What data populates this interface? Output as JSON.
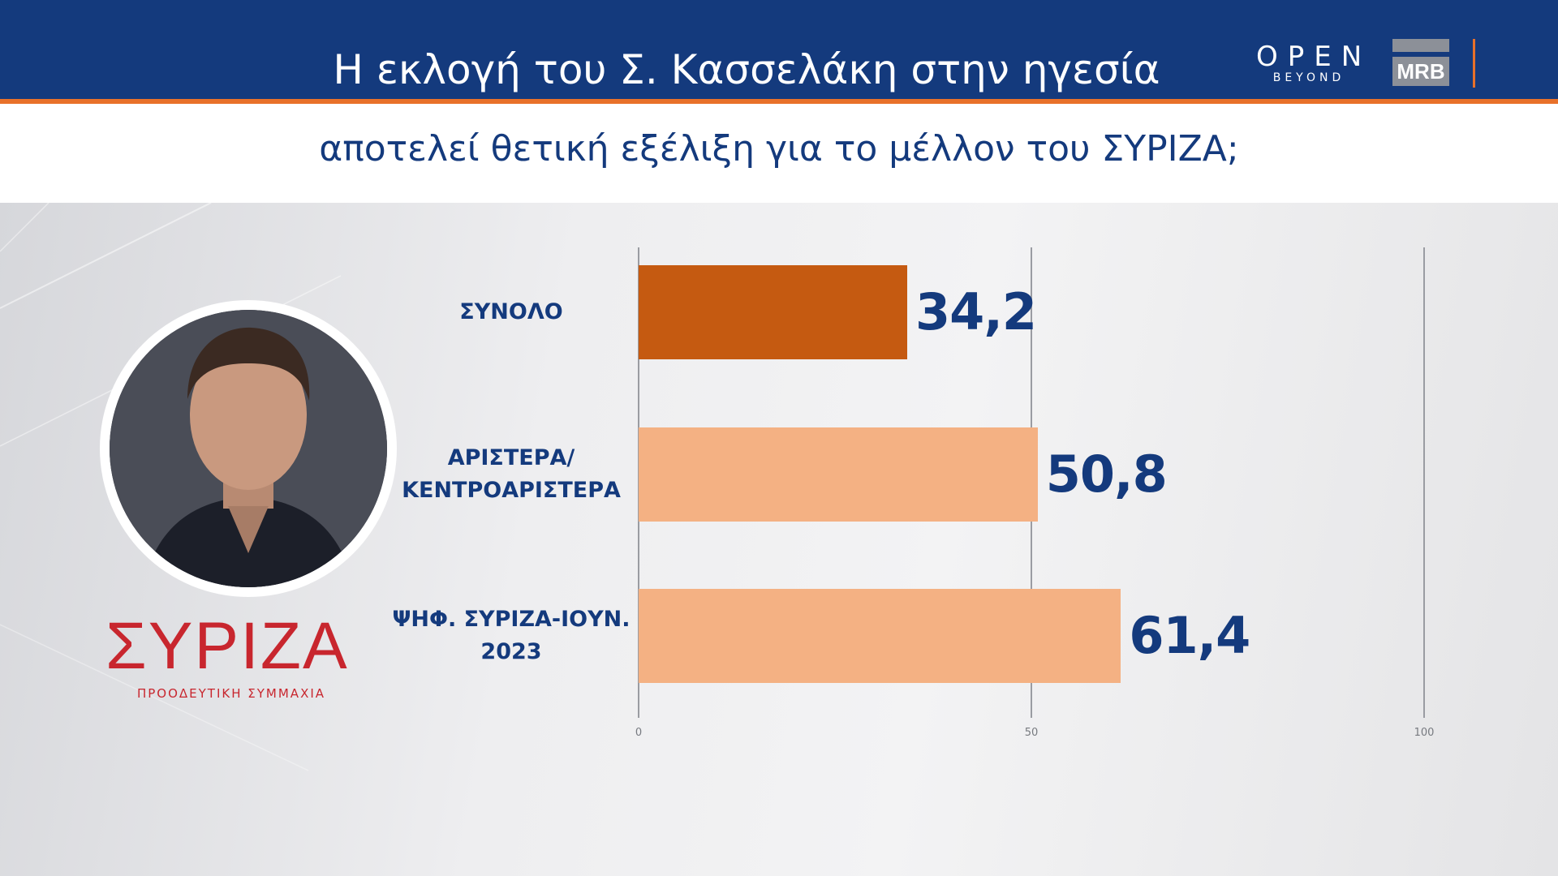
{
  "header": {
    "title": "Η εκλογή του Σ. Κασσελάκη στην ηγεσία",
    "subtitle": "αποτελεί θετική εξέλιξη για το μέλλον του ΣΥΡΙΖΑ;"
  },
  "brands": {
    "open_word": "OPEN",
    "open_sub": "BEYOND",
    "mrb": "MRB"
  },
  "party_logo": {
    "word": "ΣΥΡΙΖΑ",
    "tagline": "ΠΡΟΟΔΕΥΤΙΚΗ ΣΥΜΜΑΧΙΑ"
  },
  "colors": {
    "header_bg": "#143a7d",
    "accent": "#e8712a",
    "bar_primary": "#c55a11",
    "bar_secondary": "#f4b183",
    "text_dark_blue": "#143a7d",
    "party_red": "#c8262e"
  },
  "chart_data": {
    "type": "bar",
    "orientation": "horizontal",
    "categories": [
      [
        "ΣΥΝΟΛΟ"
      ],
      [
        "ΑΡΙΣΤΕΡΑ/",
        "ΚΕΝΤΡΟΑΡΙΣΤΕΡΑ"
      ],
      [
        "ΨΗΦ. ΣΥΡΙΖΑ-ΙΟΥΝ.",
        "2023"
      ]
    ],
    "values": [
      34.2,
      50.8,
      61.4
    ],
    "value_labels": [
      "34,2",
      "50,8",
      "61,4"
    ],
    "bar_colors": [
      "#c55a11",
      "#f4b183",
      "#f4b183"
    ],
    "xlim": [
      0,
      100
    ],
    "xticks": [
      0,
      50,
      100
    ],
    "xtick_labels": [
      "0",
      "50",
      "100"
    ],
    "grid": true
  }
}
